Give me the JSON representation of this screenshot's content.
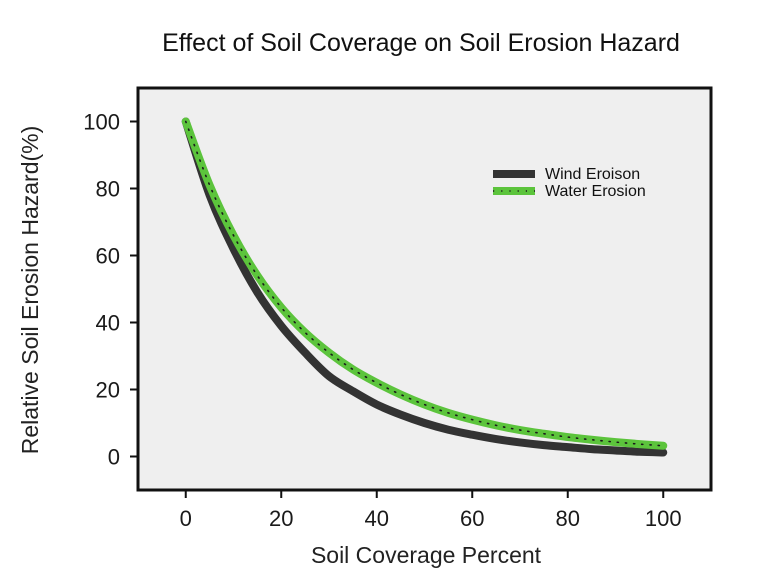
{
  "chart_data": {
    "type": "line",
    "title": "Effect of Soil Coverage on Soil Erosion Hazard",
    "xlabel": "Soil Coverage Percent",
    "ylabel": "Relative Soil Erosion Hazard(%)",
    "xlim": [
      -10,
      110
    ],
    "ylim": [
      -10,
      110
    ],
    "xticks": [
      0,
      20,
      40,
      60,
      80,
      100
    ],
    "yticks": [
      0,
      20,
      40,
      60,
      80,
      100
    ],
    "grid": false,
    "legend_position": "top-right",
    "x": [
      0,
      5,
      10,
      15,
      20,
      25,
      30,
      35,
      40,
      45,
      50,
      55,
      60,
      65,
      70,
      75,
      80,
      85,
      90,
      95,
      100
    ],
    "series": [
      {
        "name": "Wind Eroison",
        "color": "#333333",
        "style": "solid-thick",
        "values": [
          100,
          78,
          62,
          49,
          39,
          31,
          24,
          19.5,
          15.5,
          12.5,
          10,
          8,
          6.5,
          5.2,
          4.2,
          3.4,
          2.8,
          2.2,
          1.8,
          1.4,
          1.2
        ]
      },
      {
        "name": "Water Erosion",
        "color": "#5cc43c",
        "style": "thick-with-dotted-center",
        "values": [
          100,
          81,
          66,
          54,
          44.5,
          37,
          31,
          26,
          22,
          18.5,
          15.5,
          13,
          11,
          9.3,
          7.9,
          6.8,
          5.8,
          5,
          4.3,
          3.7,
          3.2
        ]
      }
    ]
  }
}
